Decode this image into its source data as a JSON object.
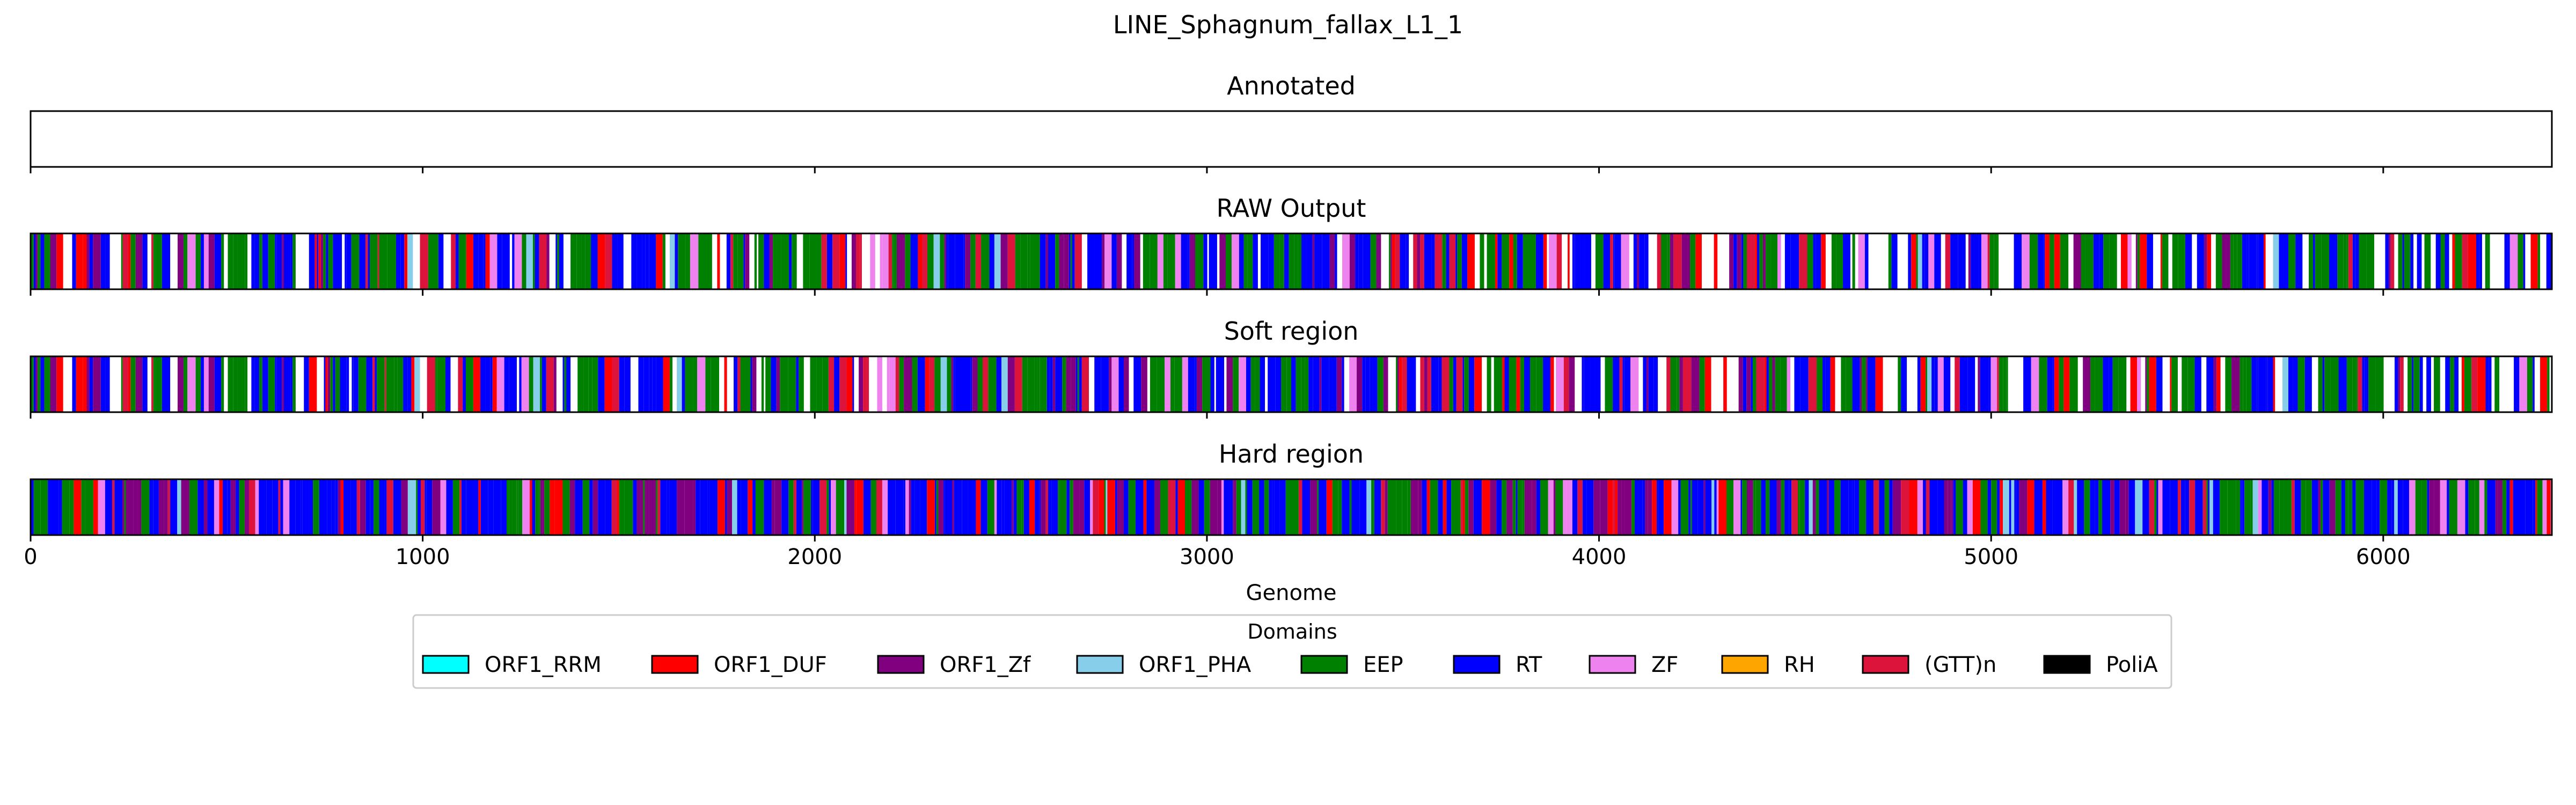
{
  "figure": {
    "title": "LINE_Sphagnum_fallax_L1_1",
    "xlabel": "Genome",
    "legend_title": "Domains"
  },
  "chart_data": {
    "type": "heatmap",
    "title": "LINE_Sphagnum_fallax_L1_1",
    "xlabel": "Genome",
    "xlim": [
      0,
      6430
    ],
    "xticks": [
      0,
      1000,
      2000,
      3000,
      4000,
      5000,
      6000
    ],
    "xtick_labels": [
      "0",
      "1000",
      "2000",
      "3000",
      "4000",
      "5000",
      "6000"
    ],
    "grid": false,
    "legend_placement": "bottom-center",
    "domains": [
      {
        "name": "ORF1_RRM",
        "color": "#00FFFF"
      },
      {
        "name": "ORF1_DUF",
        "color": "#FF0000"
      },
      {
        "name": "ORF1_Zf",
        "color": "#800080"
      },
      {
        "name": "ORF1_PHA",
        "color": "#87CEEB"
      },
      {
        "name": "EEP",
        "color": "#008000"
      },
      {
        "name": "RT",
        "color": "#0000FF"
      },
      {
        "name": "ZF",
        "color": "#EE82EE"
      },
      {
        "name": "RH",
        "color": "#FFA500"
      },
      {
        "name": "(GTT)n",
        "color": "#DC143C"
      },
      {
        "name": "PoliA",
        "color": "#000000"
      }
    ],
    "tracks": [
      {
        "title": "Annotated",
        "segments": [],
        "pattern": null
      },
      {
        "title": "RAW Output",
        "segments": [],
        "pattern": {
          "seed": 11,
          "white_prob": 0.16,
          "weights": [
            0,
            0.09,
            0.13,
            0.02,
            0.26,
            0.38,
            0.05,
            0,
            0.07,
            0
          ]
        }
      },
      {
        "title": "Soft region",
        "segments": [],
        "pattern": {
          "seed": 11,
          "white_prob": 0.15,
          "weights": [
            0,
            0.09,
            0.13,
            0.02,
            0.26,
            0.38,
            0.05,
            0,
            0.07,
            0
          ]
        }
      },
      {
        "title": "Hard region",
        "segments": [],
        "pattern": {
          "seed": 29,
          "white_prob": 0.0,
          "weights": [
            0,
            0.08,
            0.14,
            0.02,
            0.27,
            0.36,
            0.06,
            0,
            0.07,
            0
          ]
        }
      }
    ]
  }
}
